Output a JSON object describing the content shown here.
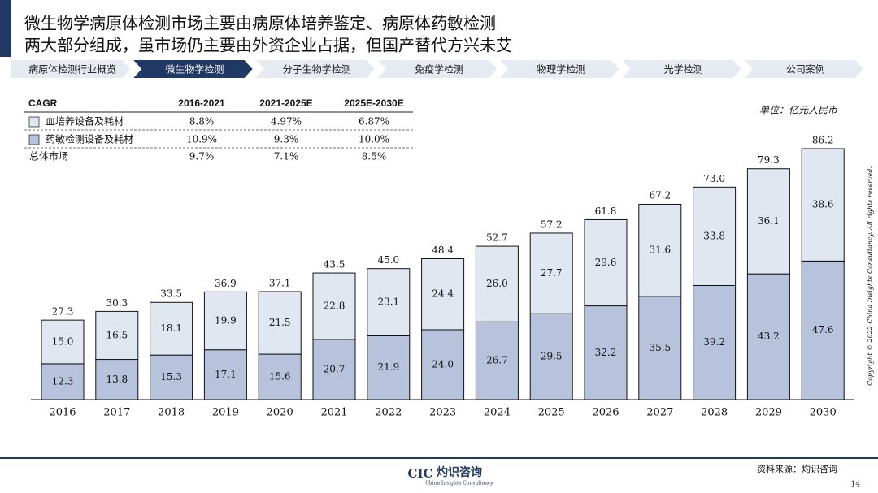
{
  "header": {
    "title_lines": [
      "微生物学病原体检测市场主要由病原体培养鉴定、病原体药敏检测",
      "两大部分组成，虽市场仍主要由外资企业占据，但国产替代方兴未艾"
    ]
  },
  "nav": {
    "tabs": [
      "病原体检测行业概览",
      "微生物学检测",
      "分子生物学检测",
      "免疫学检测",
      "物理学检测",
      "光学检测",
      "公司案例"
    ],
    "active": 1
  },
  "cagr_table": {
    "header": [
      "CAGR",
      "2016-2021",
      "2021-2025E",
      "2025E-2030E"
    ],
    "rows": [
      [
        "8.8%",
        "4.97%",
        "6.87%"
      ],
      [
        "10.9%",
        "9.3%",
        "10.0%"
      ],
      [
        "9.7%",
        "7.1%",
        "8.5%"
      ]
    ],
    "total_label": "总体市场"
  },
  "chart_data": {
    "type": "bar",
    "stacked": true,
    "unit": "单位：亿元人民币",
    "categories": [
      "2016",
      "2017",
      "2018",
      "2019",
      "2020",
      "2021",
      "2022",
      "2023",
      "2024",
      "2025",
      "2026",
      "2027",
      "2028",
      "2029",
      "2030"
    ],
    "series": [
      {
        "name": "药敏检测设备及耗材",
        "color": "#b7c3dc",
        "values": [
          12.3,
          13.8,
          15.3,
          17.1,
          15.6,
          20.7,
          21.9,
          24.0,
          26.7,
          29.5,
          32.2,
          35.5,
          39.2,
          43.2,
          47.6
        ],
        "value_labels": [
          "12.3",
          "13.8",
          "15.3",
          "17.1",
          "15.6",
          "20.7",
          "21.9",
          "24.0",
          "26.7",
          "29.5",
          "32.2",
          "35.5",
          "39.2",
          "43.2",
          "47.6"
        ]
      },
      {
        "name": "血培养设备及耗材",
        "color": "#e1e7f1",
        "values": [
          15.0,
          16.5,
          18.1,
          19.9,
          21.5,
          22.8,
          23.1,
          24.4,
          26.0,
          27.7,
          29.6,
          31.6,
          33.8,
          36.1,
          38.6
        ],
        "value_labels": [
          "15.0",
          "16.5",
          "18.1",
          "19.9",
          "21.5",
          "22.8",
          "23.1",
          "24.4",
          "26.0",
          "27.7",
          "29.6",
          "31.6",
          "33.8",
          "36.1",
          "38.6"
        ]
      }
    ],
    "total": {
      "values": [
        27.3,
        30.3,
        33.5,
        36.9,
        37.1,
        43.5,
        45.0,
        48.4,
        52.7,
        57.2,
        61.8,
        67.2,
        73.0,
        79.3,
        86.2
      ],
      "value_labels": [
        "27.3",
        "30.3",
        "33.5",
        "36.9",
        "37.1",
        "43.5",
        "45.0",
        "48.4",
        "52.7",
        "57.2",
        "61.8",
        "67.2",
        "73.0",
        "79.3",
        "86.2"
      ]
    }
  },
  "footer": {
    "source": "资料来源：灼识咨询",
    "page": "14",
    "copyright": "Copyright © 2022 China Insights Consultancy. All rights reserved.",
    "logo_mark": "CIC",
    "logo_text": "灼识咨询",
    "logo_sub": "China Insights Consultancy"
  }
}
